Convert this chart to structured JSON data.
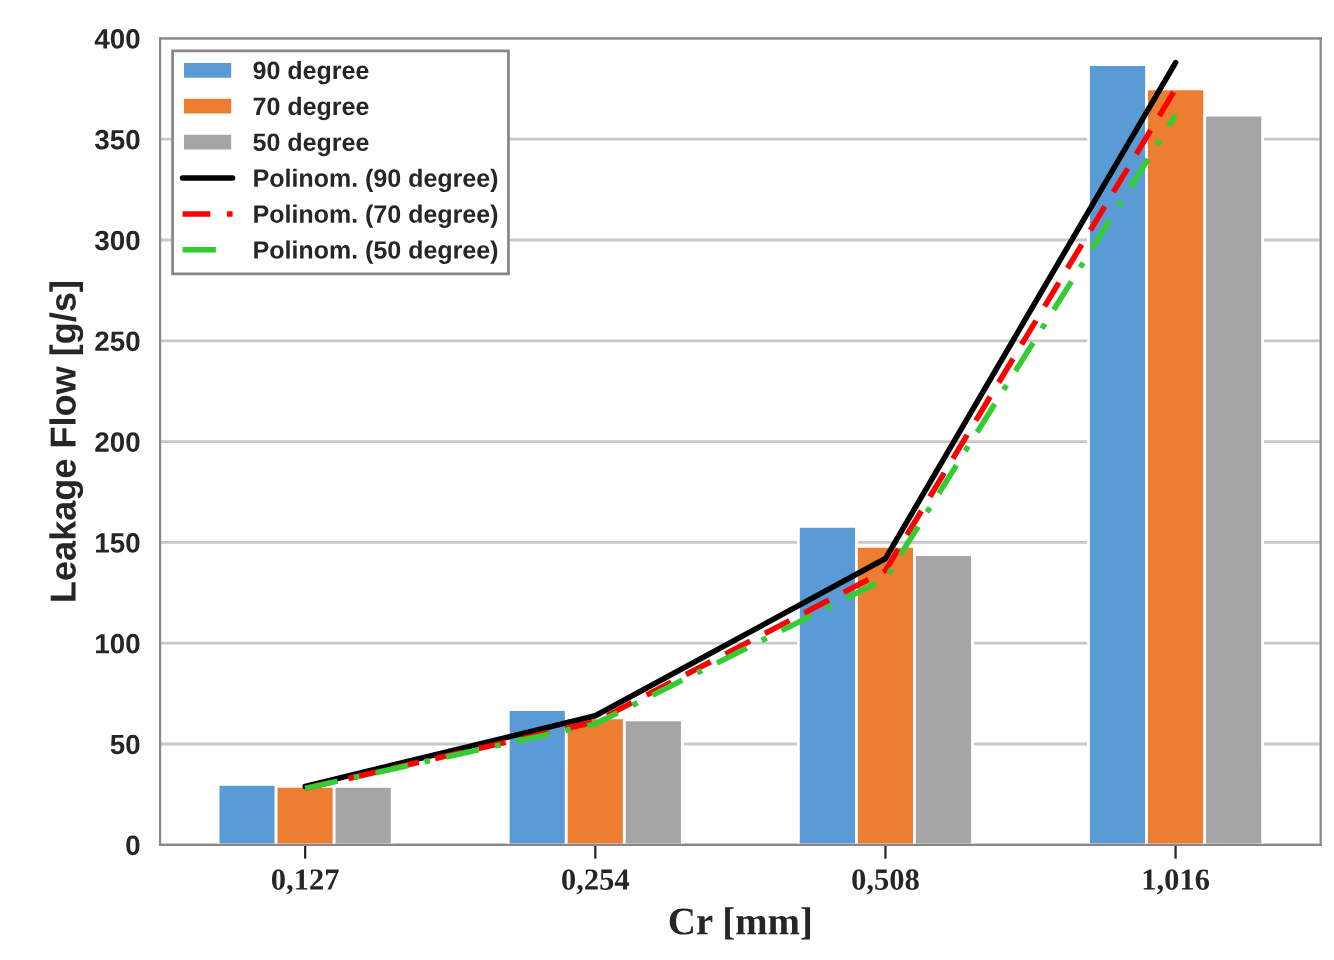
{
  "chart_data": {
    "type": "bar",
    "xlabel": "Cr [mm]",
    "ylabel": "Leakage Flow [g/s]",
    "categories": [
      "0,127",
      "0,254",
      "0,508",
      "1,016"
    ],
    "series": [
      {
        "name": "90 degree",
        "color": "#5b9bd5",
        "values": [
          30,
          67,
          158,
          387
        ]
      },
      {
        "name": "70 degree",
        "color": "#ed7d31",
        "values": [
          29,
          63,
          148,
          375
        ]
      },
      {
        "name": "50 degree",
        "color": "#a5a5a5",
        "values": [
          29,
          62,
          144,
          362
        ]
      },
      {
        "name": "Polinom. (90 degree)",
        "type": "line",
        "color": "#000000",
        "line_style": "solid",
        "values": [
          29,
          64,
          142,
          388
        ]
      },
      {
        "name": "Polinom. (70 degree)",
        "type": "line",
        "color": "#ff0000",
        "line_style": "dashed",
        "values": [
          28,
          61,
          136,
          375
        ]
      },
      {
        "name": "Polinom. (50 degree)",
        "type": "line",
        "color": "#33cc33",
        "line_style": "dashdot",
        "values": [
          28,
          60,
          132,
          362
        ]
      }
    ],
    "ylim": [
      0,
      400
    ],
    "yticks": [
      0,
      50,
      100,
      150,
      200,
      250,
      300,
      350,
      400
    ],
    "grid": "y",
    "legend": "top left"
  }
}
